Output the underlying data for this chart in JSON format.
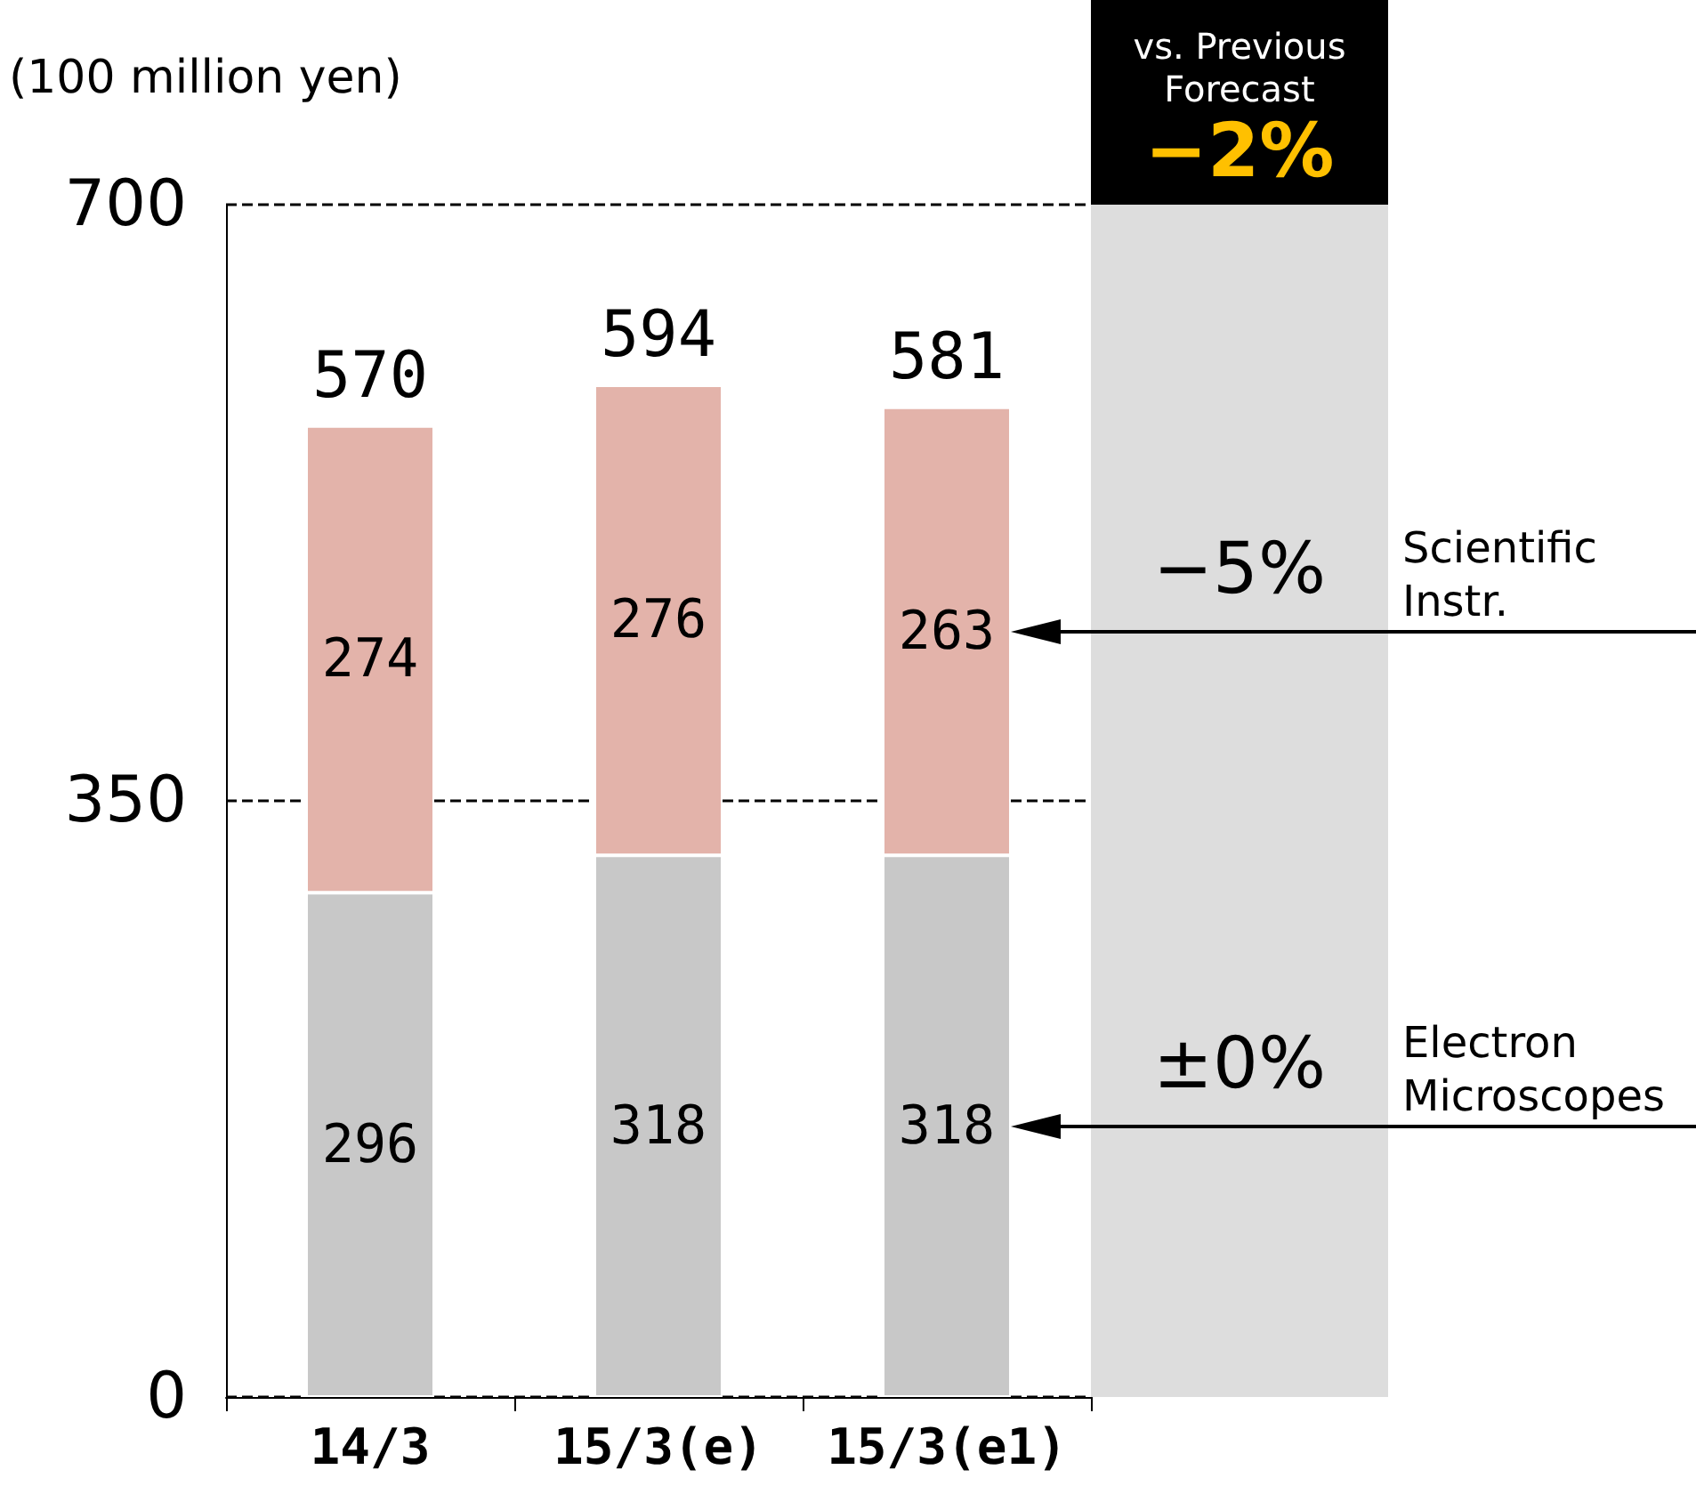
{
  "chart_data": {
    "type": "bar",
    "stacked": true,
    "ylabel": "(100 million yen)",
    "categories": [
      "14/3",
      "15/3(e)",
      "15/3(e1)"
    ],
    "series": [
      {
        "name": "Electron Microscopes",
        "color": "#c8c8c8",
        "values": [
          296,
          318,
          318
        ]
      },
      {
        "name": "Scientific Instr.",
        "color": "#e3b3aa",
        "values": [
          274,
          276,
          263
        ]
      }
    ],
    "totals": [
      "570",
      "594",
      "581"
    ],
    "data_labels": true,
    "ylim": [
      0,
      700
    ],
    "yticks": [
      0,
      350,
      700
    ],
    "grid": "y",
    "legend": false,
    "annotations": [
      "vs. Previous Forecast",
      "−2%",
      "±0%",
      "−5%"
    ]
  }
}
